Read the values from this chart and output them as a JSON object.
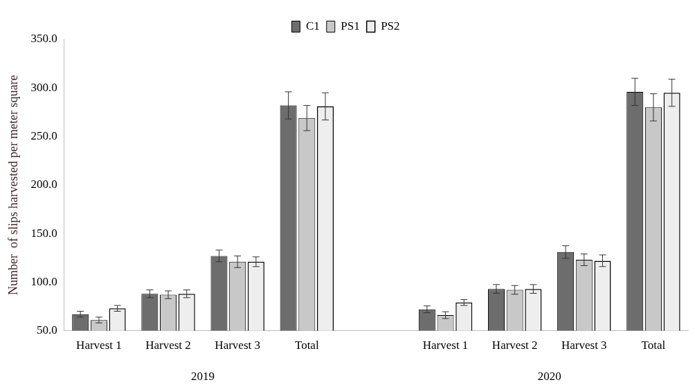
{
  "chart_data": {
    "type": "bar",
    "ylabel": "Number  of slips harvested per meter square",
    "categories": [
      "Harvest 1",
      "Harvest 2",
      "Harvest 3",
      "Total",
      null,
      "Harvest 1",
      "Harvest 2",
      "Harvest 3",
      "Total"
    ],
    "series": [
      {
        "name": "C1",
        "color": "#6d6d6d",
        "values": [
          67,
          88,
          127,
          282,
          null,
          72,
          93,
          131,
          296
        ],
        "errors": [
          3,
          4,
          6,
          14,
          null,
          3.5,
          4.5,
          6.5,
          14
        ]
      },
      {
        "name": "PS1",
        "color": "#c8c8c8",
        "values": [
          61,
          87,
          121,
          269,
          null,
          66,
          92,
          123,
          280
        ],
        "errors": [
          3,
          4,
          6,
          13,
          null,
          3.5,
          4.5,
          6,
          14
        ]
      },
      {
        "name": "PS2",
        "color": "#eeeeee",
        "line_style": "dashed",
        "values": [
          73,
          88,
          121,
          281,
          null,
          79,
          93,
          122,
          295
        ],
        "errors": [
          3,
          4,
          5,
          14,
          null,
          3,
          4.5,
          6,
          14
        ]
      }
    ],
    "ylim": [
      50,
      350
    ],
    "yticks": [
      {
        "value": 50,
        "label": "50.0"
      },
      {
        "value": 100,
        "label": "100.0"
      },
      {
        "value": 150,
        "label": "150.0"
      },
      {
        "value": 200,
        "label": "200.0"
      },
      {
        "value": 250,
        "label": "250.0"
      },
      {
        "value": 300,
        "label": "300.0"
      },
      {
        "value": 350,
        "label": "350.0"
      }
    ],
    "annotations": [
      "2019",
      "2020"
    ],
    "grid": false,
    "legend": "top"
  }
}
